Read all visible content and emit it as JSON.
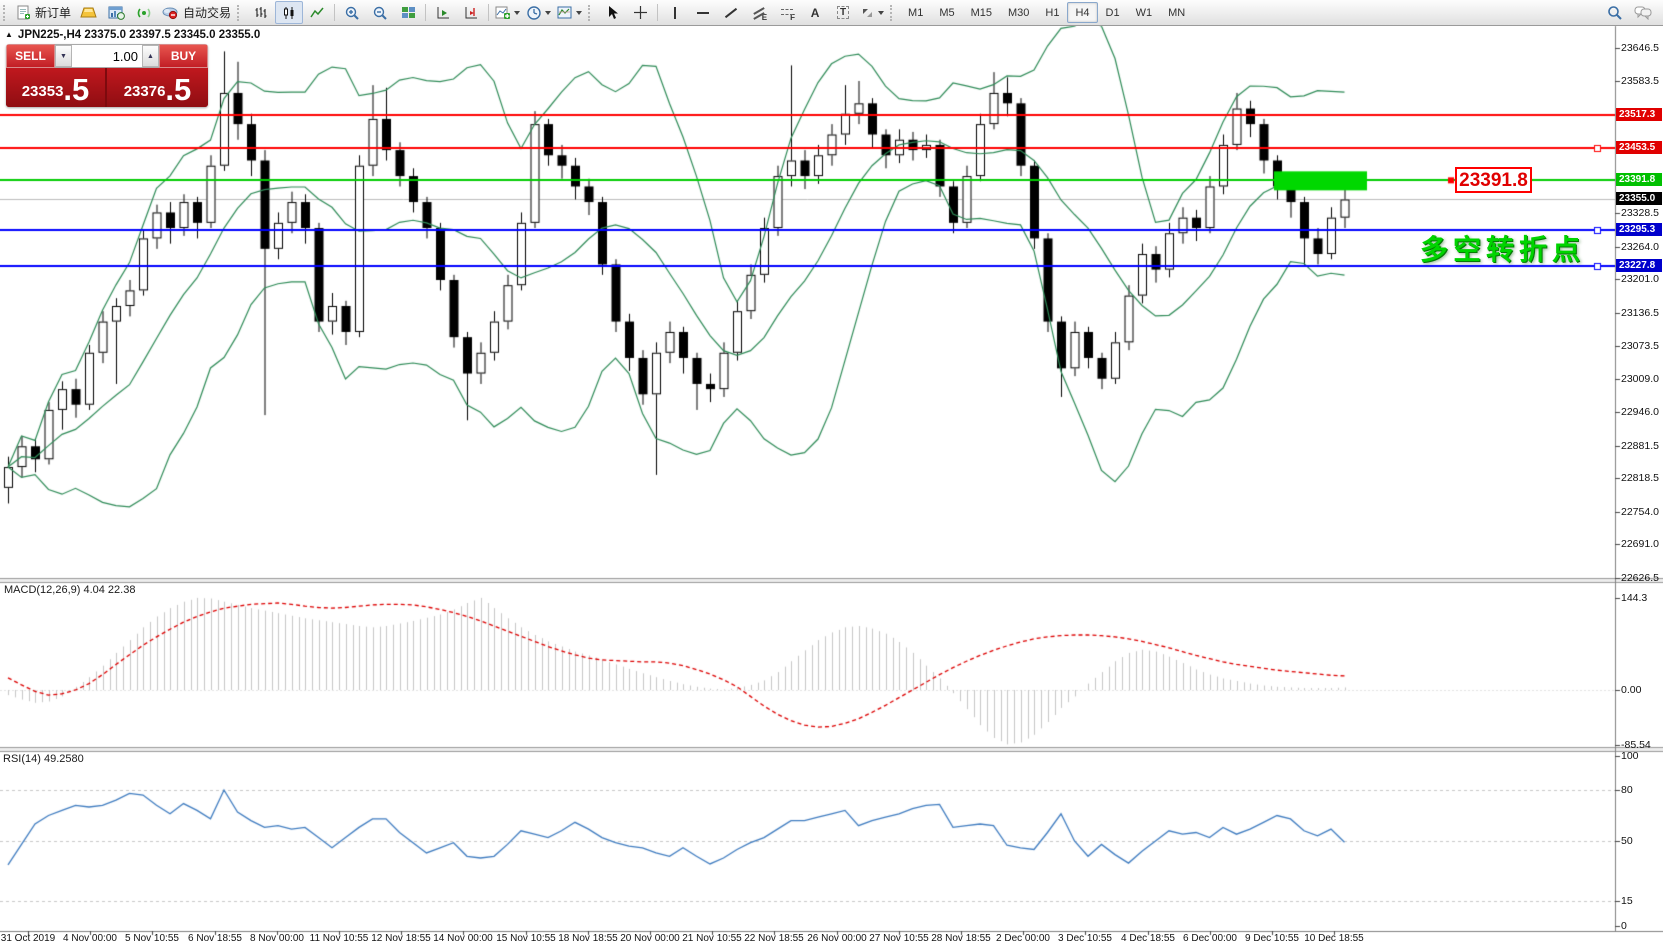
{
  "toolbar": {
    "new_order_label": "新订单",
    "autotrade_label": "自动交易",
    "timeframes": [
      "M1",
      "M5",
      "M15",
      "M30",
      "H1",
      "H4",
      "D1",
      "W1",
      "MN"
    ],
    "active_timeframe": "H4",
    "glyphs": {
      "letter_a": "A",
      "letter_t": "T",
      "channel_e": "E",
      "fibo_f": "F"
    }
  },
  "one_click": {
    "sell_label": "SELL",
    "buy_label": "BUY",
    "volume": "1.00",
    "dec_arrow": "▼",
    "inc_arrow": "▲",
    "sell_price": "23353",
    "sell_frac": ".5",
    "buy_price": "23376",
    "buy_frac": ".5"
  },
  "chart": {
    "collapse_arrow": "▲",
    "title": "JPN225-,H4  23375.0 23397.5 23345.0 23355.0"
  },
  "panes": {
    "macd": {
      "label": "MACD(12,26,9) 4.04 22.38"
    },
    "rsi": {
      "label": "RSI(14) 49.2580"
    }
  },
  "annotations": {
    "price_box": "23391.8",
    "turning_point": "多空转折点"
  },
  "chart_data": {
    "type": "candlestick",
    "symbol": "JPN225-",
    "timeframe": "H4",
    "ohlc_display": {
      "open": 23375.0,
      "high": 23397.5,
      "low": 23345.0,
      "close": 23355.0
    },
    "price_axis": {
      "ticks": [
        23646.5,
        23583.5,
        23328.5,
        23264.0,
        23201.0,
        23136.5,
        23073.5,
        23009.0,
        22946.0,
        22881.5,
        22818.5,
        22754.0,
        22691.0,
        22626.5
      ],
      "badges": [
        {
          "label": "23517.3",
          "price": 23517.3,
          "color": "#e00000"
        },
        {
          "label": "23453.5",
          "price": 23453.5,
          "color": "#e00000"
        },
        {
          "label": "23391.8",
          "price": 23391.8,
          "color": "#00c000"
        },
        {
          "label": "23355.0",
          "price": 23355.0,
          "color": "#000000"
        },
        {
          "label": "23295.3",
          "price": 23295.3,
          "color": "#0000cc"
        },
        {
          "label": "23227.8",
          "price": 23227.8,
          "color": "#0000cc"
        }
      ]
    },
    "hlines": [
      {
        "price": 23517.3,
        "color": "#ff0000",
        "width": 2,
        "marker": false
      },
      {
        "price": 23453.5,
        "color": "#ff0000",
        "width": 2,
        "marker": true
      },
      {
        "price": 23391.8,
        "color": "#00cc00",
        "width": 2,
        "marker": false
      },
      {
        "price": 23295.3,
        "color": "#0000ff",
        "width": 2,
        "marker": true
      },
      {
        "price": 23227.8,
        "color": "#0000ff",
        "width": 2,
        "marker": true
      }
    ],
    "current_price_line": {
      "price": 23355.0,
      "color": "#bcbcbc"
    },
    "highlight_rect": {
      "price": 23391.8,
      "color": "#00d800"
    },
    "bollinger": {
      "period": 10,
      "deviation": 2,
      "color": "#2e8b57"
    },
    "candles": [
      [
        22800,
        22860,
        22770,
        22840
      ],
      [
        22840,
        22900,
        22820,
        22880
      ],
      [
        22880,
        22895,
        22830,
        22855
      ],
      [
        22855,
        22965,
        22845,
        22950
      ],
      [
        22950,
        23005,
        22912,
        22990
      ],
      [
        22990,
        23010,
        22935,
        22960
      ],
      [
        22960,
        23075,
        22950,
        23060
      ],
      [
        23060,
        23140,
        23040,
        23120
      ],
      [
        23120,
        23165,
        23000,
        23150
      ],
      [
        23150,
        23200,
        23130,
        23180
      ],
      [
        23180,
        23295,
        23170,
        23280
      ],
      [
        23280,
        23345,
        23260,
        23330
      ],
      [
        23330,
        23350,
        23270,
        23300
      ],
      [
        23300,
        23365,
        23285,
        23350
      ],
      [
        23350,
        23360,
        23280,
        23310
      ],
      [
        23310,
        23440,
        23300,
        23420
      ],
      [
        23420,
        23640,
        23410,
        23560
      ],
      [
        23560,
        23620,
        23470,
        23500
      ],
      [
        23500,
        23520,
        23400,
        23430
      ],
      [
        23430,
        23450,
        22940,
        23260
      ],
      [
        23260,
        23330,
        23240,
        23310
      ],
      [
        23310,
        23370,
        23290,
        23350
      ],
      [
        23350,
        23365,
        23270,
        23300
      ],
      [
        23300,
        23310,
        23100,
        23120
      ],
      [
        23120,
        23175,
        23095,
        23150
      ],
      [
        23150,
        23160,
        23075,
        23100
      ],
      [
        23100,
        23440,
        23090,
        23420
      ],
      [
        23420,
        23575,
        23400,
        23510
      ],
      [
        23510,
        23570,
        23430,
        23450
      ],
      [
        23450,
        23465,
        23380,
        23400
      ],
      [
        23400,
        23415,
        23330,
        23350
      ],
      [
        23350,
        23360,
        23280,
        23300
      ],
      [
        23300,
        23310,
        23180,
        23200
      ],
      [
        23200,
        23210,
        23070,
        23090
      ],
      [
        23090,
        23100,
        22930,
        23020
      ],
      [
        23020,
        23080,
        23000,
        23060
      ],
      [
        23060,
        23140,
        23045,
        23120
      ],
      [
        23120,
        23210,
        23105,
        23190
      ],
      [
        23190,
        23330,
        23180,
        23310
      ],
      [
        23310,
        23525,
        23300,
        23500
      ],
      [
        23500,
        23510,
        23420,
        23440
      ],
      [
        23440,
        23460,
        23395,
        23420
      ],
      [
        23420,
        23435,
        23355,
        23380
      ],
      [
        23380,
        23395,
        23325,
        23350
      ],
      [
        23350,
        23360,
        23210,
        23230
      ],
      [
        23230,
        23240,
        23100,
        23120
      ],
      [
        23120,
        23135,
        23025,
        23050
      ],
      [
        23050,
        23065,
        22960,
        22980
      ],
      [
        22980,
        23080,
        22825,
        23060
      ],
      [
        23060,
        23120,
        23040,
        23100
      ],
      [
        23100,
        23110,
        23020,
        23050
      ],
      [
        23050,
        23060,
        22950,
        23000
      ],
      [
        23000,
        23020,
        22965,
        22990
      ],
      [
        22990,
        23080,
        22975,
        23060
      ],
      [
        23060,
        23160,
        23045,
        23140
      ],
      [
        23140,
        23230,
        23125,
        23210
      ],
      [
        23210,
        23320,
        23195,
        23300
      ],
      [
        23300,
        23420,
        23285,
        23400
      ],
      [
        23400,
        23613,
        23380,
        23430
      ],
      [
        23430,
        23450,
        23375,
        23400
      ],
      [
        23400,
        23460,
        23385,
        23440
      ],
      [
        23440,
        23500,
        23420,
        23480
      ],
      [
        23480,
        23575,
        23460,
        23520
      ],
      [
        23520,
        23583,
        23500,
        23540
      ],
      [
        23540,
        23550,
        23455,
        23480
      ],
      [
        23480,
        23490,
        23415,
        23440
      ],
      [
        23440,
        23490,
        23425,
        23470
      ],
      [
        23470,
        23485,
        23430,
        23450
      ],
      [
        23450,
        23480,
        23435,
        23460
      ],
      [
        23460,
        23470,
        23360,
        23380
      ],
      [
        23380,
        23390,
        23290,
        23310
      ],
      [
        23310,
        23420,
        23300,
        23400
      ],
      [
        23400,
        23520,
        23390,
        23500
      ],
      [
        23500,
        23600,
        23490,
        23560
      ],
      [
        23560,
        23590,
        23515,
        23540
      ],
      [
        23540,
        23550,
        23400,
        23420
      ],
      [
        23420,
        23430,
        23260,
        23280
      ],
      [
        23280,
        23290,
        23100,
        23120
      ],
      [
        23120,
        23130,
        22975,
        23030
      ],
      [
        23030,
        23120,
        23015,
        23100
      ],
      [
        23100,
        23110,
        23030,
        23050
      ],
      [
        23050,
        23060,
        22990,
        23010
      ],
      [
        23010,
        23100,
        23000,
        23080
      ],
      [
        23080,
        23190,
        23065,
        23170
      ],
      [
        23170,
        23270,
        23155,
        23250
      ],
      [
        23250,
        23265,
        23195,
        23220
      ],
      [
        23220,
        23310,
        23205,
        23290
      ],
      [
        23290,
        23340,
        23270,
        23320
      ],
      [
        23320,
        23335,
        23275,
        23300
      ],
      [
        23300,
        23400,
        23290,
        23380
      ],
      [
        23380,
        23480,
        23365,
        23460
      ],
      [
        23460,
        23560,
        23450,
        23530
      ],
      [
        23530,
        23545,
        23475,
        23500
      ],
      [
        23500,
        23510,
        23405,
        23430
      ],
      [
        23430,
        23440,
        23355,
        23380
      ],
      [
        23380,
        23395,
        23320,
        23350
      ],
      [
        23350,
        23360,
        23226,
        23280
      ],
      [
        23280,
        23300,
        23230,
        23250
      ],
      [
        23250,
        23340,
        23240,
        23320
      ],
      [
        23320,
        23375,
        23300,
        23355
      ]
    ],
    "macd": {
      "params": "12,26,9",
      "main_value": 4.04,
      "signal_value": 22.38,
      "axis": [
        {
          "v": 144.3,
          "label": "144.3"
        },
        {
          "v": 0,
          "label": "0.00"
        },
        {
          "v": -85.54,
          "label": "-85.54"
        }
      ],
      "histogram": [
        -8,
        -15,
        -20,
        -18,
        -10,
        5,
        20,
        38,
        58,
        78,
        98,
        115,
        128,
        138,
        144,
        143,
        138,
        133,
        128,
        124,
        120,
        116,
        112,
        109,
        106,
        103,
        100,
        98,
        100,
        104,
        108,
        113,
        118,
        126,
        136,
        144,
        128,
        112,
        98,
        86,
        76,
        68,
        60,
        54,
        47,
        40,
        33,
        26,
        20,
        14,
        9,
        5,
        2,
        1,
        3,
        8,
        15,
        28,
        45,
        62,
        78,
        90,
        98,
        100,
        96,
        88,
        75,
        58,
        38,
        18,
        -5,
        -30,
        -55,
        -75,
        -85,
        -82,
        -70,
        -50,
        -28,
        -10,
        10,
        28,
        45,
        58,
        63,
        60,
        52,
        42,
        32,
        24,
        18,
        14,
        10,
        7,
        5,
        4,
        3,
        3,
        3,
        4
      ],
      "signal_line": [
        19,
        8,
        -2,
        -8,
        -6,
        0,
        10,
        24,
        40,
        55,
        70,
        83,
        95,
        106,
        115,
        122,
        128,
        131,
        134,
        135,
        136,
        134,
        131,
        129,
        128,
        129,
        131,
        133,
        134,
        134,
        133,
        130,
        126,
        121,
        115,
        108,
        100,
        92,
        84,
        76,
        68,
        61,
        55,
        50,
        47,
        46,
        45,
        44,
        44,
        42,
        38,
        32,
        25,
        16,
        5,
        -10,
        -25,
        -38,
        -48,
        -55,
        -58,
        -57,
        -52,
        -45,
        -35,
        -24,
        -12,
        0,
        12,
        24,
        35,
        45,
        54,
        62,
        69,
        75,
        80,
        83,
        85,
        86,
        86,
        85,
        83,
        80,
        76,
        71,
        66,
        60,
        54,
        49,
        44,
        40,
        37,
        34,
        31,
        29,
        27,
        25,
        23,
        22
      ],
      "colors": {
        "histogram": "#c6c6c6",
        "signal": "#dd0000"
      }
    },
    "rsi": {
      "period": 14,
      "value": 49.258,
      "levels": [
        80,
        50,
        15
      ],
      "axis": [
        {
          "v": 100,
          "label": "100"
        },
        {
          "v": 80,
          "label": "80"
        },
        {
          "v": 50,
          "label": "50"
        },
        {
          "v": 15,
          "label": "15"
        },
        {
          "v": 0,
          "label": "0"
        }
      ],
      "values": [
        36,
        48,
        60,
        65,
        68,
        71,
        70,
        71,
        74,
        78,
        77,
        71,
        66,
        72,
        68,
        63,
        80,
        67,
        62,
        58,
        59,
        57,
        58,
        52,
        46,
        52,
        58,
        63,
        63,
        55,
        49,
        43,
        46,
        49,
        41,
        40,
        41,
        48,
        56,
        54,
        52,
        56,
        61,
        57,
        52,
        49,
        47,
        46,
        43,
        41,
        46,
        41,
        36.5,
        40,
        45,
        49,
        52,
        57,
        62,
        62,
        64,
        66,
        68,
        59,
        62,
        64,
        66,
        69,
        71,
        71.5,
        58,
        59,
        60,
        59,
        47.5,
        46,
        45,
        55,
        66,
        50,
        41,
        48,
        42,
        37,
        44,
        50,
        56,
        54,
        55,
        52,
        58,
        54,
        57,
        61,
        65,
        63,
        56,
        53,
        57,
        49.3
      ],
      "color": "#3f7cc0"
    },
    "time_axis": [
      "31 Oct 2019",
      "4 Nov 00:00",
      "5 Nov 10:55",
      "6 Nov 18:55",
      "8 Nov 00:00",
      "11 Nov 10:55",
      "12 Nov 18:55",
      "14 Nov 00:00",
      "15 Nov 10:55",
      "18 Nov 18:55",
      "20 Nov 00:00",
      "21 Nov 10:55",
      "22 Nov 18:55",
      "26 Nov 00:00",
      "27 Nov 10:55",
      "28 Nov 18:55",
      "2 Dec 00:00",
      "3 Dec 10:55",
      "4 Dec 18:55",
      "6 Dec 00:00",
      "9 Dec 10:55",
      "10 Dec 18:55"
    ]
  }
}
